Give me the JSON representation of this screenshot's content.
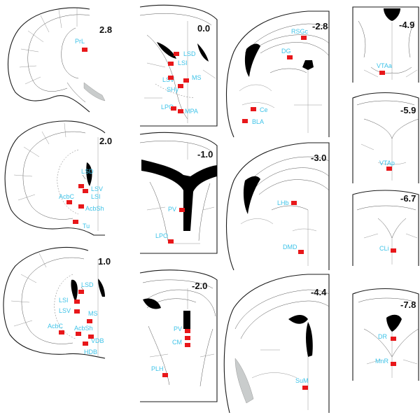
{
  "colors": {
    "region_label": "#3ec3e8",
    "marker": "#e8171a",
    "outline": "#1a1a1a",
    "ventricle": "#000000"
  },
  "sections": [
    {
      "id": "s1",
      "bregma": "2.8",
      "labels": [
        "PrL"
      ]
    },
    {
      "id": "s2",
      "bregma": "2.0",
      "labels": [
        "LSD",
        "LSV",
        "LSI",
        "AcbC",
        "AcbSh",
        "Tu"
      ]
    },
    {
      "id": "s3",
      "bregma": "1.0",
      "labels": [
        "LSD",
        "LSI",
        "LSV",
        "MS",
        "AcbC",
        "AcbSh",
        "VDB",
        "HDB"
      ]
    },
    {
      "id": "s4",
      "bregma": "0.0",
      "labels": [
        "LSD",
        "LSI",
        "LSV",
        "MS",
        "SHy",
        "LPO",
        "MPA"
      ]
    },
    {
      "id": "s5",
      "bregma": "-1.0",
      "labels": [
        "PV",
        "LPO"
      ]
    },
    {
      "id": "s6",
      "bregma": "-2.0",
      "labels": [
        "PV",
        "CM",
        "PLH"
      ]
    },
    {
      "id": "s7",
      "bregma": "-2.8",
      "labels": [
        "RSGc",
        "DG",
        "Ce",
        "BLA"
      ]
    },
    {
      "id": "s8",
      "bregma": "-3.0",
      "labels": [
        "LHb",
        "DMD"
      ]
    },
    {
      "id": "s9",
      "bregma": "-4.4",
      "labels": [
        "SuM"
      ]
    },
    {
      "id": "s10",
      "bregma": "-4.9",
      "labels": [
        "VTAa"
      ]
    },
    {
      "id": "s11",
      "bregma": "-5.9",
      "labels": [
        "VTAp"
      ]
    },
    {
      "id": "s12",
      "bregma": "-6.7",
      "labels": [
        "CLi"
      ]
    },
    {
      "id": "s13",
      "bregma": "-7.8",
      "labels": [
        "DR",
        "MnR"
      ]
    }
  ]
}
